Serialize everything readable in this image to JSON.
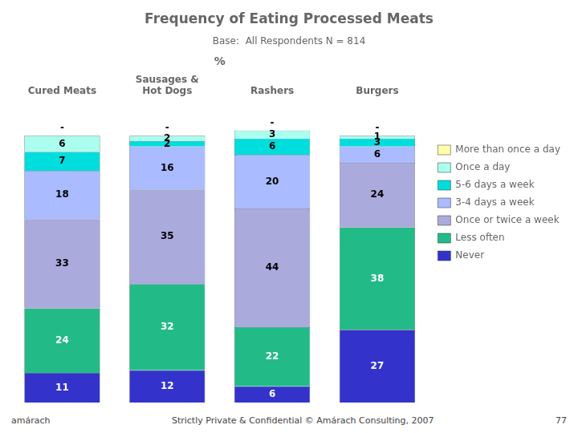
{
  "chart_data": {
    "type": "bar",
    "title": "Frequency of Eating Processed Meats",
    "subtitle": "Base:  All Respondents N = 814",
    "x_label": "%",
    "categories": [
      "Cured Meats",
      "Sausages &\nHot Dogs",
      "Rashers",
      "Burgers"
    ],
    "series": [
      {
        "name": "Never",
        "color": "#3333cc",
        "values": [
          11,
          12,
          6,
          27
        ]
      },
      {
        "name": "Less often",
        "color": "#22bb88",
        "values": [
          24,
          32,
          22,
          38
        ]
      },
      {
        "name": "Once or twice a week",
        "color": "#aaaadd",
        "values": [
          33,
          35,
          44,
          24
        ]
      },
      {
        "name": "3-4 days a week",
        "color": "#aabbff",
        "values": [
          18,
          16,
          20,
          6
        ]
      },
      {
        "name": "5-6 days a week",
        "color": "#00dddd",
        "values": [
          7,
          2,
          6,
          3
        ]
      },
      {
        "name": "Once a day",
        "color": "#aaffee",
        "values": [
          6,
          2,
          3,
          1
        ]
      },
      {
        "name": "More than once a day",
        "color": "#ffffaa",
        "values": [
          null,
          null,
          null,
          null
        ],
        "value_labels": [
          "-",
          "-",
          "-",
          "-"
        ]
      }
    ],
    "stacked": true,
    "data_labels": true,
    "ylim": [
      0,
      110
    ],
    "tick_labels": "x",
    "grid": false,
    "legend": "right",
    "annotations": [
      "amárach",
      "Strictly Private & Confidential © Amárach Consulting, 2007",
      "77"
    ]
  }
}
